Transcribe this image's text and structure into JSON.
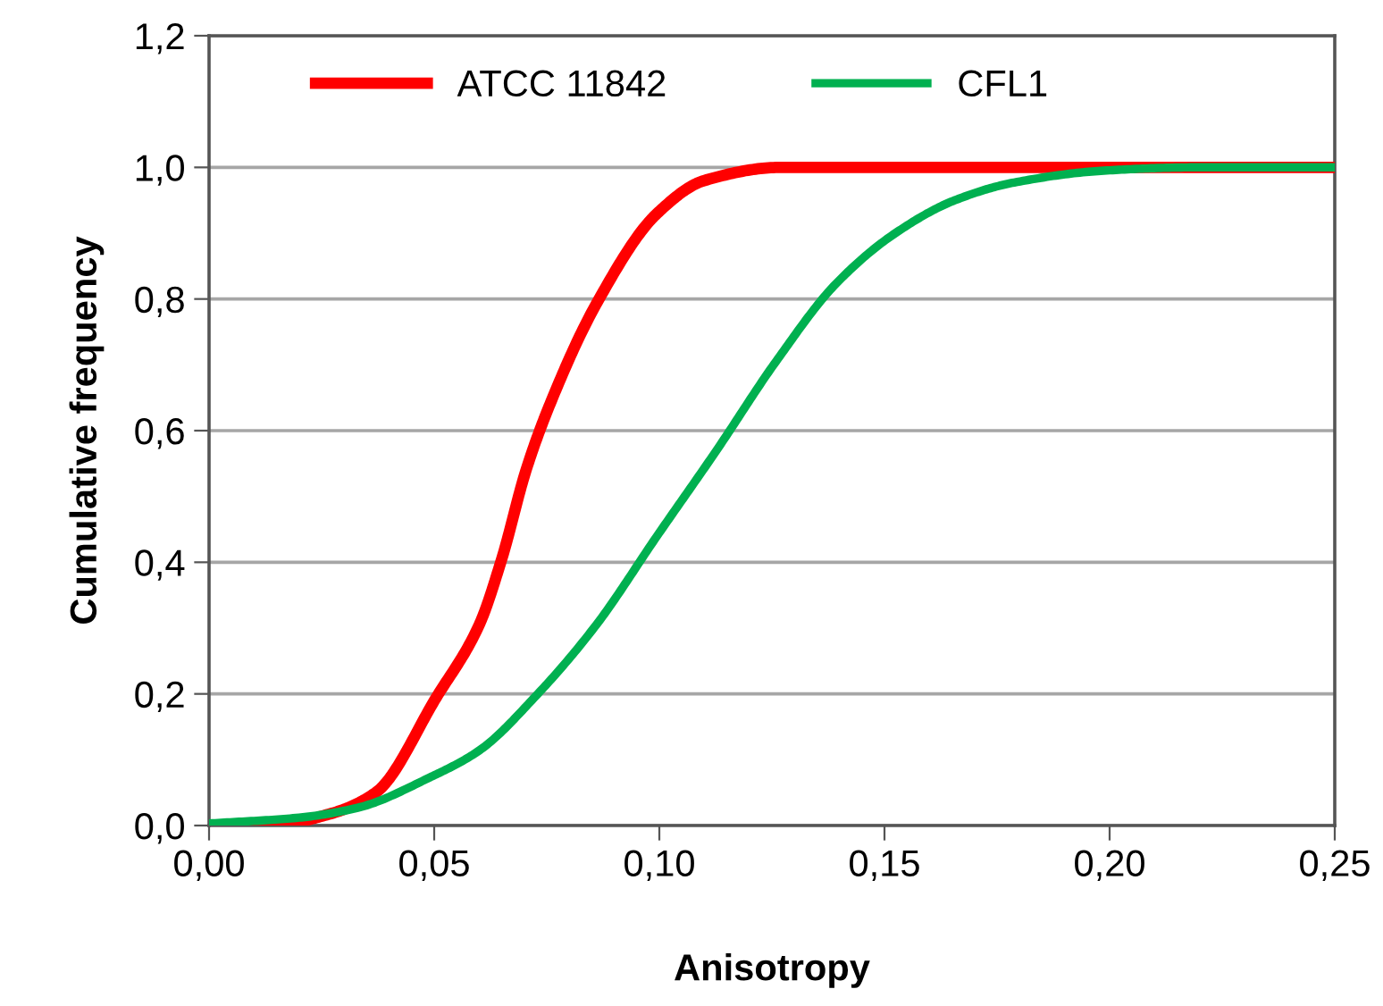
{
  "chart_data": {
    "type": "line",
    "xlabel": "Anisotropy",
    "ylabel": "Cumulative frequency",
    "series": [
      {
        "name": "ATCC 11842",
        "color": "#ff0000",
        "x": [
          0,
          0.0135,
          0.027,
          0.037,
          0.0505,
          0.06,
          0.065,
          0.0704,
          0.0757,
          0.0862,
          0.0995,
          0.11,
          0.127,
          0.25
        ],
        "values": [
          0,
          0,
          0.018,
          0.05,
          0.195,
          0.305,
          0.405,
          0.54,
          0.64,
          0.795,
          0.93,
          0.98,
          1.0,
          1.0
        ]
      },
      {
        "name": "CFL1",
        "color": "#00b050",
        "x": [
          0,
          0.02,
          0.033,
          0.049,
          0.06,
          0.073,
          0.086,
          0.0995,
          0.1127,
          0.1259,
          0.1392,
          0.1524,
          0.1656,
          0.1788,
          0.1987,
          0.2185,
          0.25
        ],
        "values": [
          0.003,
          0.012,
          0.027,
          0.073,
          0.114,
          0.2,
          0.305,
          0.44,
          0.57,
          0.705,
          0.823,
          0.9,
          0.95,
          0.977,
          0.995,
          1.0,
          1.0
        ]
      }
    ],
    "xlim": [
      0,
      0.25
    ],
    "xticks": [
      {
        "value": 0,
        "label": "0,00"
      },
      {
        "value": 0.05,
        "label": "0,05"
      },
      {
        "value": 0.1,
        "label": "0,10"
      },
      {
        "value": 0.15,
        "label": "0,15"
      },
      {
        "value": 0.2,
        "label": "0,20"
      },
      {
        "value": 0.25,
        "label": "0,25"
      }
    ],
    "ylim": [
      0,
      1.2
    ],
    "yticks": [
      {
        "value": 0,
        "label": "0,0"
      },
      {
        "value": 0.2,
        "label": "0,2"
      },
      {
        "value": 0.4,
        "label": "0,4"
      },
      {
        "value": 0.6,
        "label": "0,6"
      },
      {
        "value": 0.8,
        "label": "0,8"
      },
      {
        "value": 1.0,
        "label": "1,0"
      },
      {
        "value": 1.2,
        "label": "1,2"
      }
    ],
    "grid": "y",
    "legend": "top",
    "marker": "none",
    "line_style": "solid"
  }
}
